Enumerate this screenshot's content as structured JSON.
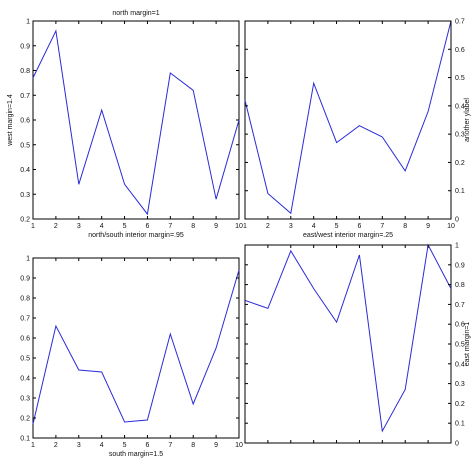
{
  "chart_data": [
    {
      "type": "line",
      "title": "north margin=1",
      "xlabel": "north/south interior margin=.95",
      "ylabel": "west margin=1.4",
      "ylabel_side": "left",
      "xlim": [
        1,
        10
      ],
      "ylim": [
        0.2,
        1.0
      ],
      "xticks": [
        "1",
        "2",
        "3",
        "4",
        "5",
        "6",
        "7",
        "8",
        "9",
        "10"
      ],
      "yticks": [
        "0.2",
        "0.3",
        "0.4",
        "0.5",
        "0.6",
        "0.7",
        "0.8",
        "0.9",
        "1"
      ],
      "grid": false,
      "color": "#2b2bd8",
      "x": [
        1,
        2,
        3,
        4,
        5,
        6,
        7,
        8,
        9,
        10
      ],
      "y": [
        0.77,
        0.96,
        0.34,
        0.64,
        0.34,
        0.22,
        0.79,
        0.72,
        0.28,
        0.6
      ]
    },
    {
      "type": "line",
      "title": "",
      "xlabel": "east/west interior margin=.25",
      "ylabel": "another ylabel",
      "ylabel_side": "right",
      "xlim": [
        1,
        10
      ],
      "ylim": [
        0,
        0.7
      ],
      "xticks": [
        "1",
        "2",
        "3",
        "4",
        "5",
        "6",
        "7",
        "8",
        "9",
        "10"
      ],
      "yticks": [
        "0",
        "0.1",
        "0.2",
        "0.3",
        "0.4",
        "0.5",
        "0.6",
        "0.7"
      ],
      "grid": false,
      "color": "#2b2bd8",
      "x": [
        1,
        2,
        3,
        4,
        5,
        6,
        7,
        8,
        9,
        10
      ],
      "y": [
        0.42,
        0.09,
        0.02,
        0.48,
        0.27,
        0.33,
        0.29,
        0.17,
        0.38,
        0.7
      ]
    },
    {
      "type": "line",
      "title": "",
      "xlabel": "south margin=1.5",
      "ylabel": "",
      "ylabel_side": "left",
      "xlim": [
        1,
        10
      ],
      "ylim": [
        0.1,
        1.0
      ],
      "xticks": [
        "1",
        "2",
        "3",
        "4",
        "5",
        "6",
        "7",
        "8",
        "9",
        "10"
      ],
      "yticks": [
        "0.1",
        "0.2",
        "0.3",
        "0.4",
        "0.5",
        "0.6",
        "0.7",
        "0.8",
        "0.9",
        "1"
      ],
      "grid": false,
      "color": "#2b2bd8",
      "x": [
        1,
        2,
        3,
        4,
        5,
        6,
        7,
        8,
        9,
        10
      ],
      "y": [
        0.17,
        0.66,
        0.44,
        0.43,
        0.18,
        0.19,
        0.62,
        0.27,
        0.55,
        0.94
      ]
    },
    {
      "type": "line",
      "title": "",
      "xlabel": "",
      "ylabel": "east margin=1",
      "ylabel_side": "right",
      "xlim": [
        1,
        10
      ],
      "ylim": [
        0,
        1.0
      ],
      "xticks": [],
      "yticks": [
        "0",
        "0.1",
        "0.2",
        "0.3",
        "0.4",
        "0.5",
        "0.6",
        "0.7",
        "0.8",
        "0.9",
        "1"
      ],
      "grid": false,
      "color": "#2b2bd8",
      "x": [
        1,
        2,
        3,
        4,
        5,
        6,
        7,
        8,
        9,
        10
      ],
      "y": [
        0.72,
        0.68,
        0.97,
        0.78,
        0.61,
        0.95,
        0.06,
        0.27,
        1.0,
        0.78
      ]
    }
  ]
}
